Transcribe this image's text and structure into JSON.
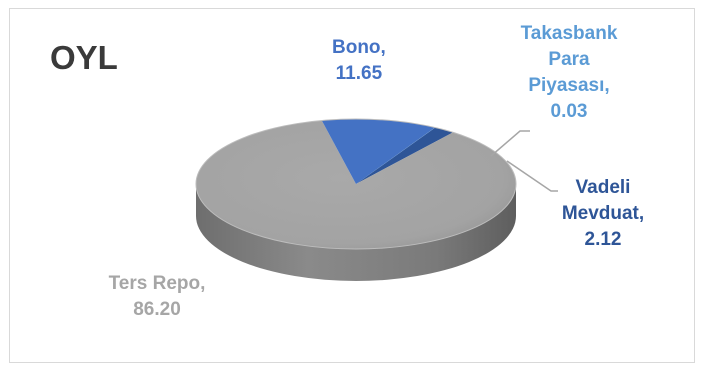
{
  "chart_data": {
    "type": "pie",
    "title": "OYL",
    "slices": [
      {
        "name": "Ters Repo",
        "value": 86.2,
        "value_label": "86.20",
        "name_label": "Ters Repo,",
        "color": "#a6a6a6",
        "label_color": "#a6a6a6"
      },
      {
        "name": "Bono",
        "value": 11.65,
        "value_label": "11.65",
        "name_label": "Bono,",
        "color": "#4472c4",
        "label_color": "#4472c4"
      },
      {
        "name": "Takasbank Para Piyasası",
        "value": 0.03,
        "value_label": "0.03",
        "name_label": [
          "Takasbank",
          "Para",
          "Piyasası,"
        ],
        "color": "#5b9bd5",
        "label_color": "#5b9bd5"
      },
      {
        "name": "Vadeli Mevduat",
        "value": 2.12,
        "value_label": "2.12",
        "name_label": [
          "Vadeli",
          "Mevduat,"
        ],
        "color": "#2e5597",
        "label_color": "#2e5597"
      }
    ],
    "style": "3d",
    "legend": "none"
  }
}
